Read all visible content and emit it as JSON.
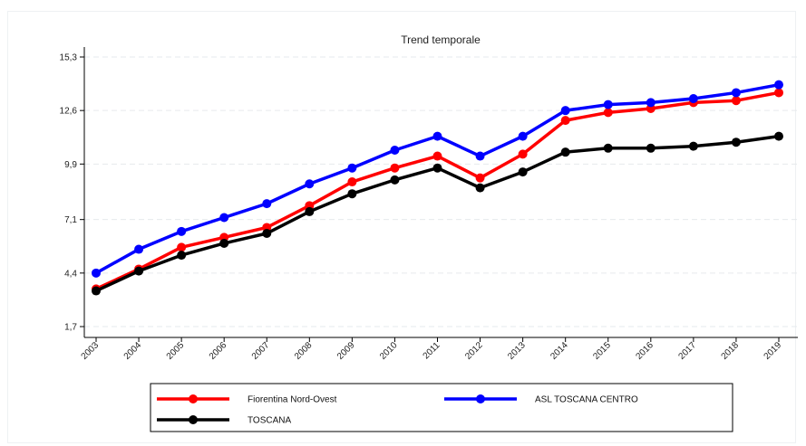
{
  "chart_data": {
    "type": "line",
    "title": "Trend temporale",
    "xlabel": "",
    "ylabel": "",
    "x": [
      "2003",
      "2004",
      "2005",
      "2006",
      "2007",
      "2008",
      "2009",
      "2010",
      "2011",
      "2012",
      "2013",
      "2014",
      "2015",
      "2016",
      "2017",
      "2018",
      "2019"
    ],
    "yticks": [
      "1,7",
      "4,4",
      "7,1",
      "9,9",
      "12,6",
      "15,3"
    ],
    "ytick_values": [
      1.7,
      4.4,
      7.1,
      9.9,
      12.6,
      15.3
    ],
    "ylim": [
      1.3,
      15.6
    ],
    "grid": true,
    "legend_position": "bottom",
    "series": [
      {
        "name": "Fiorentina Nord-Ovest",
        "color": "#ff0000",
        "values": [
          3.6,
          4.6,
          5.7,
          6.2,
          6.7,
          7.8,
          9.0,
          9.7,
          10.3,
          9.2,
          10.4,
          12.1,
          12.5,
          12.7,
          13.0,
          13.1,
          13.5
        ]
      },
      {
        "name": "ASL TOSCANA CENTRO",
        "color": "#0000ff",
        "values": [
          4.4,
          5.6,
          6.5,
          7.2,
          7.9,
          8.9,
          9.7,
          10.6,
          11.3,
          10.3,
          11.3,
          12.6,
          12.9,
          13.0,
          13.2,
          13.5,
          13.9
        ]
      },
      {
        "name": "TOSCANA",
        "color": "#000000",
        "values": [
          3.5,
          4.5,
          5.3,
          5.9,
          6.4,
          7.5,
          8.4,
          9.1,
          9.7,
          8.7,
          9.5,
          10.5,
          10.7,
          10.7,
          10.8,
          11.0,
          11.3
        ]
      }
    ]
  }
}
